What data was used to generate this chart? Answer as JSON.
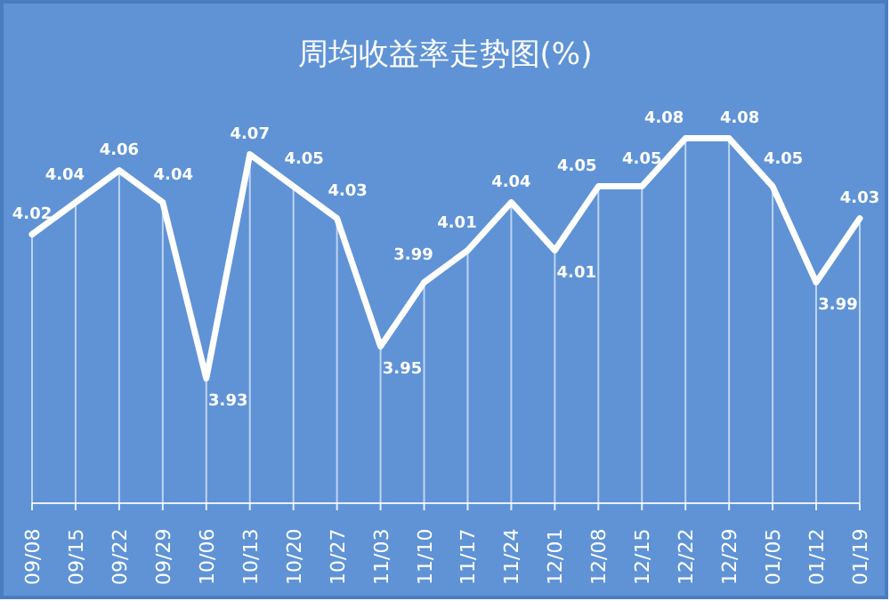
{
  "chart_data": {
    "type": "line",
    "title": "周均收益率走势图(%)",
    "categories": [
      "09/08",
      "09/15",
      "09/22",
      "09/29",
      "10/06",
      "10/13",
      "10/20",
      "10/27",
      "11/03",
      "11/10",
      "11/17",
      "11/24",
      "12/01",
      "12/08",
      "12/15",
      "12/22",
      "12/29",
      "01/05",
      "01/12",
      "01/19"
    ],
    "series": [
      {
        "color": "#ffffff",
        "values": [
          4.02,
          4.04,
          4.06,
          4.04,
          3.93,
          4.07,
          4.05,
          4.03,
          3.95,
          3.99,
          4.01,
          4.04,
          4.01,
          4.05,
          4.05,
          4.08,
          4.08,
          4.05,
          3.99,
          4.03
        ]
      }
    ],
    "data_labels": true,
    "grid": "x",
    "marker": "none",
    "line_style": "solid"
  }
}
